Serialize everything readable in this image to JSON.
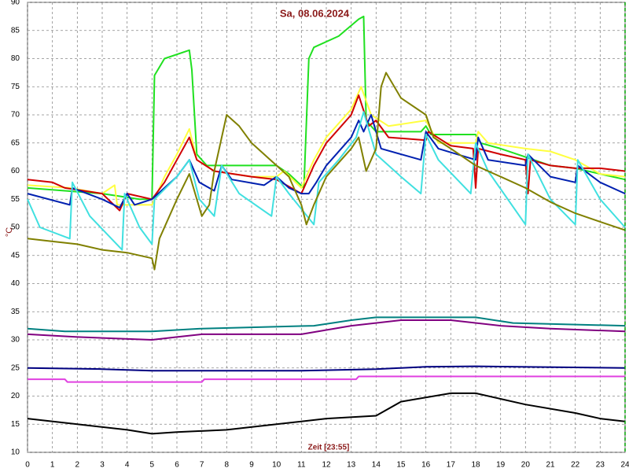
{
  "chart_data": {
    "type": "line",
    "title": "Sa, 08.06.2024",
    "xlabel": "Zeit [23:55]",
    "ylabel": "°C",
    "xlim": [
      0,
      24
    ],
    "xticks": [
      0,
      1,
      2,
      3,
      4,
      5,
      6,
      7,
      8,
      9,
      10,
      11,
      12,
      13,
      14,
      15,
      16,
      17,
      18,
      19,
      20,
      21,
      22,
      23,
      24
    ],
    "ylim": [
      10,
      90
    ],
    "yticks": [
      10,
      15,
      20,
      25,
      30,
      35,
      40,
      45,
      50,
      55,
      60,
      65,
      70,
      75,
      80,
      85,
      90
    ],
    "grid": true,
    "series": [
      {
        "color": "#20e020",
        "x": [
          0,
          1.5,
          3,
          4.5,
          5,
          5.1,
          5.5,
          6.5,
          6.6,
          6.8,
          7.2,
          10,
          10.5,
          11.1,
          11.3,
          11.5,
          12.5,
          13.3,
          13.5,
          13.6,
          14,
          14.5,
          15.8,
          16,
          16.2,
          18,
          18.2,
          19,
          20,
          21,
          22,
          23,
          24
        ],
        "values": [
          57,
          56.5,
          56,
          55,
          55,
          77,
          80,
          81.5,
          78,
          63,
          61,
          61,
          59.5,
          57,
          80,
          82,
          84,
          87,
          87.5,
          69,
          67,
          67,
          67,
          68,
          66.5,
          66.5,
          65,
          64,
          62.5,
          61,
          60.5,
          59.5,
          58.5
        ]
      },
      {
        "color": "#ffff40",
        "x": [
          0,
          1.7,
          3,
          3.5,
          3.6,
          5,
          5.5,
          6,
          6.5,
          6.8,
          7.5,
          9,
          10,
          10.3,
          11,
          11.5,
          12,
          13,
          13.4,
          13.8,
          14.5,
          16,
          16.5,
          18,
          18.1,
          18.5,
          20,
          21,
          22,
          23,
          24
        ],
        "values": [
          57.5,
          57,
          56,
          57.5,
          54,
          54,
          59,
          63,
          67.5,
          62,
          60,
          59,
          59,
          60,
          57,
          62,
          66,
          71,
          75,
          70,
          68,
          69,
          65,
          65,
          67,
          65,
          64,
          63.5,
          62,
          59.5,
          59
        ]
      },
      {
        "color": "#d00000",
        "x": [
          0,
          1,
          1.5,
          3,
          3.7,
          4,
          5,
          5.5,
          6,
          6.5,
          6.8,
          7.5,
          9,
          10,
          11,
          11.5,
          12,
          13,
          13.3,
          13.7,
          14,
          14.5,
          16,
          16.1,
          17,
          17.9,
          18,
          18.1,
          19,
          20,
          20.1,
          20.2,
          21,
          22,
          23,
          24
        ],
        "values": [
          58.5,
          58,
          57,
          56,
          53,
          56,
          55,
          58,
          62,
          66,
          62,
          60,
          59,
          58.5,
          56,
          61,
          65,
          70,
          73.5,
          68,
          69,
          66,
          65.5,
          67,
          64.5,
          64,
          57,
          64,
          63,
          62,
          56,
          62,
          61,
          60.5,
          60.5,
          60
        ]
      },
      {
        "color": "#0020b0",
        "x": [
          0,
          1.7,
          1.8,
          3,
          3.7,
          4,
          4.3,
          5,
          5.5,
          6,
          6.5,
          6.9,
          7.5,
          7.8,
          8.2,
          9.5,
          10,
          10.5,
          11,
          11.3,
          11.6,
          12,
          13,
          13.3,
          13.5,
          13.8,
          14.2,
          15,
          15.8,
          16,
          16.5,
          18,
          18.1,
          18.5,
          20,
          20.1,
          21,
          22,
          22.1,
          23,
          24
        ],
        "values": [
          56,
          54,
          57,
          55,
          53.5,
          56,
          54,
          55,
          57,
          59,
          62,
          58,
          56.5,
          61,
          58.5,
          57.5,
          59,
          57,
          56,
          56,
          58,
          61,
          66,
          69,
          67,
          70,
          64,
          63,
          62,
          67,
          64,
          62,
          66,
          62,
          61,
          63,
          59,
          58,
          61,
          58,
          56
        ]
      },
      {
        "color": "#40e0e0",
        "x": [
          0,
          0.5,
          1.7,
          1.8,
          2.5,
          3.8,
          3.9,
          4.5,
          5,
          5.1,
          6,
          6.5,
          6.9,
          7.5,
          7.8,
          8.5,
          9.8,
          10,
          10.5,
          11.5,
          11.7,
          12.5,
          13.2,
          13.5,
          14,
          15,
          15.8,
          16,
          16.5,
          17.8,
          18,
          18.5,
          20,
          20.1,
          21,
          22,
          22.1,
          23,
          24
        ],
        "values": [
          55,
          50,
          48,
          58,
          52,
          46,
          56,
          50,
          47,
          55,
          59,
          62,
          55,
          52,
          61,
          56,
          52,
          59,
          56,
          50.5,
          58,
          62,
          66,
          70.5,
          63,
          59,
          56,
          66.5,
          62,
          56,
          65,
          60,
          50.5,
          63,
          55,
          50.5,
          62,
          55,
          50
        ]
      },
      {
        "color": "#808000",
        "x": [
          0,
          1,
          2,
          3,
          4,
          5,
          5.1,
          5.3,
          6,
          6.5,
          7,
          7.3,
          7.5,
          8,
          8.5,
          9,
          10,
          10.5,
          11,
          11.2,
          11.5,
          12,
          13,
          13.3,
          13.6,
          14,
          14.2,
          14.4,
          15,
          16,
          16.3,
          17,
          18,
          19,
          20,
          21,
          22,
          23,
          24
        ],
        "values": [
          48,
          47.5,
          47,
          46,
          45.5,
          44.5,
          42.5,
          48,
          55,
          59.5,
          52,
          54,
          60,
          70,
          68,
          65,
          61,
          59,
          54,
          50.5,
          54,
          59,
          64,
          66,
          60,
          64,
          75,
          77.5,
          73,
          70,
          66,
          64,
          61,
          59,
          57,
          54.5,
          52.5,
          51,
          49.5
        ]
      },
      {
        "color": "#008080",
        "x": [
          0,
          1.5,
          5,
          7,
          11.5,
          13,
          14,
          18,
          19.5,
          24
        ],
        "values": [
          32,
          31.5,
          31.5,
          32,
          32.5,
          33.5,
          34,
          34,
          33,
          32.5
        ]
      },
      {
        "color": "#800080",
        "x": [
          0,
          2,
          5,
          6,
          7,
          11,
          13,
          15,
          17,
          19,
          21,
          24
        ],
        "values": [
          31,
          30.5,
          30,
          30.5,
          31,
          31,
          32.5,
          33.5,
          33.5,
          32.5,
          32,
          31.5
        ]
      },
      {
        "color": "#000080",
        "x": [
          0,
          3,
          5,
          8,
          11,
          14,
          16,
          18,
          24
        ],
        "values": [
          25,
          24.8,
          24.5,
          24.5,
          24.5,
          24.8,
          25.2,
          25.3,
          25
        ]
      },
      {
        "color": "#e040e0",
        "x": [
          0,
          1.5,
          1.6,
          7,
          7.1,
          13.2,
          13.3,
          24
        ],
        "values": [
          23,
          23,
          22.5,
          22.5,
          23,
          23,
          23.5,
          23.5
        ]
      },
      {
        "color": "#000000",
        "x": [
          0,
          2,
          4,
          5,
          6,
          8,
          10,
          12,
          14,
          15,
          17,
          18,
          20,
          22,
          23,
          24
        ],
        "values": [
          16,
          15,
          14,
          13.3,
          13.6,
          14,
          15,
          16,
          16.5,
          19,
          20.5,
          20.5,
          18.5,
          17,
          16,
          15.5
        ]
      }
    ]
  }
}
